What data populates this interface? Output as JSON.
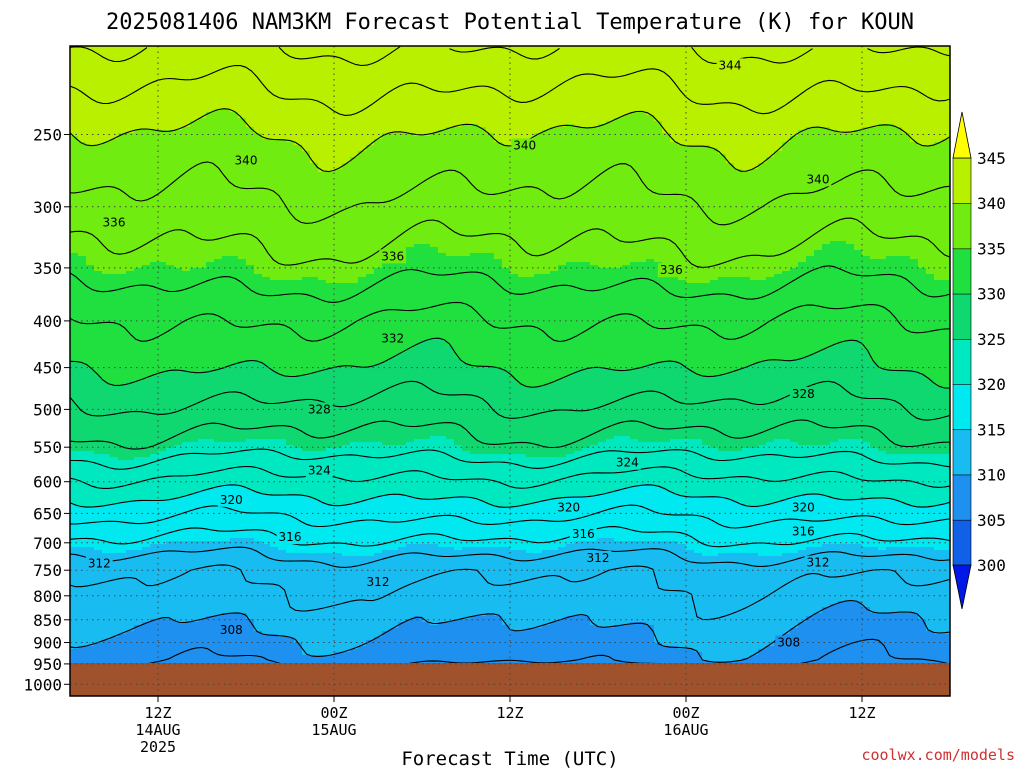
{
  "chart_data": {
    "type": "heatmap",
    "title": "2025081406 NAM3KM Forecast Potential Temperature (K) for KOUN",
    "xlabel": "Forecast Time (UTC)",
    "ylabel": "",
    "y_axis": {
      "scale": "log-pressure",
      "reversed": true,
      "range": [
        1030,
        200
      ],
      "ticks": [
        250,
        300,
        350,
        400,
        450,
        500,
        550,
        600,
        650,
        700,
        750,
        800,
        850,
        900,
        950,
        1000
      ],
      "tick_labels": [
        "250",
        "300",
        "350",
        "400",
        "450",
        "500",
        "550",
        "600",
        "650",
        "700",
        "750",
        "800",
        "850",
        "900",
        "950",
        "1000"
      ]
    },
    "x_axis": {
      "range_hours": [
        0,
        60
      ],
      "ticks": [
        {
          "hour": 6,
          "lines": [
            "12Z",
            "14AUG",
            "2025"
          ]
        },
        {
          "hour": 18,
          "lines": [
            "00Z",
            "15AUG"
          ]
        },
        {
          "hour": 30,
          "lines": [
            "12Z"
          ]
        },
        {
          "hour": 42,
          "lines": [
            "00Z",
            "16AUG"
          ]
        },
        {
          "hour": 54,
          "lines": [
            "12Z"
          ]
        }
      ]
    },
    "grid": true,
    "colorbar": {
      "placement": "right",
      "levels": [
        300,
        305,
        310,
        315,
        320,
        325,
        330,
        335,
        340,
        345
      ],
      "labels": [
        "300",
        "305",
        "310",
        "315",
        "320",
        "325",
        "330",
        "335",
        "340",
        "345"
      ],
      "colors": [
        "#0019e6",
        "#1060e8",
        "#1e90f0",
        "#18bcf0",
        "#00e8f0",
        "#00e8c0",
        "#10d870",
        "#20e040",
        "#70ec10",
        "#b8f000",
        "#ffff00"
      ]
    },
    "surface_color": "#a0522d",
    "theta_profile": [
      {
        "p": 975,
        "theta": 307
      },
      {
        "p": 950,
        "theta": 308.5
      },
      {
        "p": 900,
        "theta": 309.5
      },
      {
        "p": 850,
        "theta": 310.5
      },
      {
        "p": 800,
        "theta": 311.5
      },
      {
        "p": 750,
        "theta": 312.5
      },
      {
        "p": 700,
        "theta": 315.5
      },
      {
        "p": 650,
        "theta": 318.5
      },
      {
        "p": 600,
        "theta": 321.5
      },
      {
        "p": 550,
        "theta": 325
      },
      {
        "p": 500,
        "theta": 327.5
      },
      {
        "p": 450,
        "theta": 330
      },
      {
        "p": 400,
        "theta": 332
      },
      {
        "p": 350,
        "theta": 335
      },
      {
        "p": 300,
        "theta": 337.5
      },
      {
        "p": 250,
        "theta": 340
      },
      {
        "p": 200,
        "theta": 344
      }
    ],
    "contour_labels": [
      {
        "text": "344",
        "hour": 45,
        "p": 210
      },
      {
        "text": "340",
        "hour": 12,
        "p": 267
      },
      {
        "text": "340",
        "hour": 31,
        "p": 257
      },
      {
        "text": "340",
        "hour": 51,
        "p": 280
      },
      {
        "text": "336",
        "hour": 3,
        "p": 312
      },
      {
        "text": "336",
        "hour": 22,
        "p": 340
      },
      {
        "text": "336",
        "hour": 41,
        "p": 352
      },
      {
        "text": "332",
        "hour": 22,
        "p": 418
      },
      {
        "text": "328",
        "hour": 17,
        "p": 500
      },
      {
        "text": "328",
        "hour": 50,
        "p": 481
      },
      {
        "text": "324",
        "hour": 17,
        "p": 583
      },
      {
        "text": "324",
        "hour": 38,
        "p": 572
      },
      {
        "text": "320",
        "hour": 11,
        "p": 628
      },
      {
        "text": "320",
        "hour": 34,
        "p": 640
      },
      {
        "text": "320",
        "hour": 50,
        "p": 640
      },
      {
        "text": "316",
        "hour": 15,
        "p": 690
      },
      {
        "text": "316",
        "hour": 35,
        "p": 685
      },
      {
        "text": "316",
        "hour": 50,
        "p": 680
      },
      {
        "text": "312",
        "hour": 2,
        "p": 737
      },
      {
        "text": "312",
        "hour": 21,
        "p": 773
      },
      {
        "text": "312",
        "hour": 36,
        "p": 727
      },
      {
        "text": "312",
        "hour": 51,
        "p": 736
      },
      {
        "text": "308",
        "hour": 11,
        "p": 872
      },
      {
        "text": "308",
        "hour": 49,
        "p": 900
      }
    ]
  },
  "credit": "coolwx.com/models"
}
